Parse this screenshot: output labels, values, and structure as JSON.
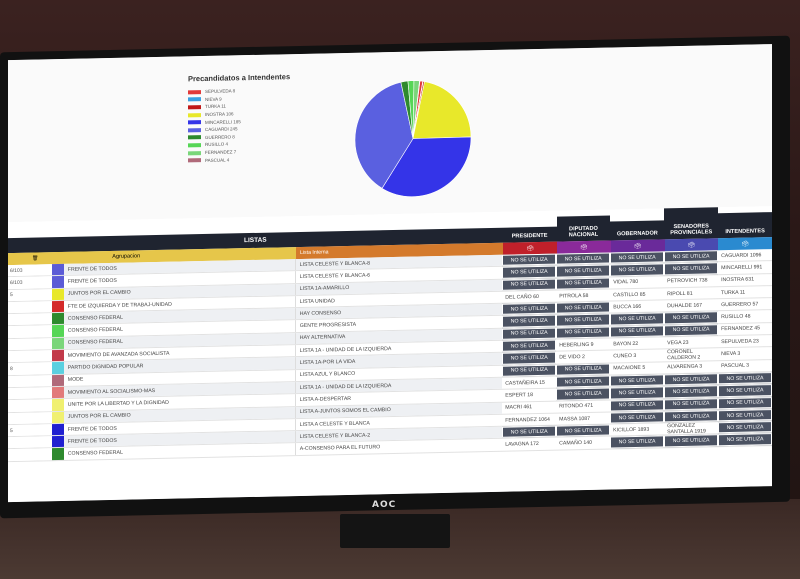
{
  "chart_data": {
    "type": "pie",
    "title": "Precandidatos a Intendentes",
    "series": [
      {
        "name": "SEPULVEDA",
        "value": 23,
        "color": "#e23a3a"
      },
      {
        "name": "NIEVA",
        "value": 3,
        "color": "#3aa0e2"
      },
      {
        "name": "TURKA",
        "value": 11,
        "color": "#c01818"
      },
      {
        "name": "INOSTRA",
        "value": 631,
        "color": "#e8e82a"
      },
      {
        "name": "MINCARELLI",
        "value": 991,
        "color": "#3434e8"
      },
      {
        "name": "CAGUARDI",
        "value": 1096,
        "color": "#5a60e0"
      },
      {
        "name": "GUERRERO",
        "value": 57,
        "color": "#2e8a2e"
      },
      {
        "name": "RUSILLO",
        "value": 48,
        "color": "#56d656"
      },
      {
        "name": "FERNANDEZ",
        "value": 45,
        "color": "#7ad67a"
      },
      {
        "name": "PASCUAL",
        "value": 3,
        "color": "#b06a7a"
      }
    ],
    "legend_position": "top-left"
  },
  "legend_labels": [
    "SEPULVEDA 8",
    "NIEVA 9",
    "TURKA 11",
    "INOSTRA 106",
    "MINCARELLI 185",
    "CAGUARDI 245",
    "GUERRERO 8",
    "RUSILLO 4",
    "FERNANDEZ 7",
    "PASCUAL 4"
  ],
  "header": {
    "listas": "LISTAS",
    "presidente": "PRESIDENTE",
    "diputado": "DIPUTADO NACIONAL",
    "gobernador": "GOBERNADOR",
    "senadores": "SENADORES PROVINCIALES",
    "intendentes": "INTENDENTES",
    "agrupacion": "Agrupacion",
    "lista_interna": "Lista Interna"
  },
  "rows": [
    {
      "num": "6/103",
      "color": "#5b5bd6",
      "agr": "FRENTE DE TODOS",
      "lista": "LISTA CELESTE Y BLANCA-8",
      "c": [
        "NO SE UTILIZA",
        "NO SE UTILIZA",
        "NO SE UTILIZA",
        "NO SE UTILIZA",
        "CAGUARDI  1096"
      ]
    },
    {
      "num": "6/103",
      "color": "#5b5bd6",
      "agr": "FRENTE DE TODOS",
      "lista": "LISTA CELESTE Y BLANCA-6",
      "c": [
        "NO SE UTILIZA",
        "NO SE UTILIZA",
        "NO SE UTILIZA",
        "NO SE UTILIZA",
        "MINCARELLI  991"
      ]
    },
    {
      "num": "5",
      "color": "#e8e82a",
      "agr": "JUNTOS POR EL CAMBIO",
      "lista": "LISTA 1A-AMARILLO",
      "c": [
        "NO SE UTILIZA",
        "NO SE UTILIZA",
        "VIDAL  780",
        "PETROVICH  738",
        "INOSTRA  631"
      ]
    },
    {
      "num": "",
      "color": "#d42a2a",
      "agr": "FTE DE IZQUIERDA Y DE TRABAJ-UNIDAD",
      "lista": "LISTA UNIDAD",
      "c": [
        "DEL CAÑO  60",
        "PITROLA  58",
        "CASTILLO  85",
        "RIPOLL  81",
        "TURKA  11"
      ]
    },
    {
      "num": "",
      "color": "#2e8a2e",
      "agr": "CONSENSO FEDERAL",
      "lista": "HAY CONSENSO",
      "c": [
        "NO SE UTILIZA",
        "NO SE UTILIZA",
        "BUCCA  166",
        "DUHALDE  167",
        "GUERRERO  57"
      ]
    },
    {
      "num": "",
      "color": "#56d656",
      "agr": "CONSENSO FEDERAL",
      "lista": "GENTE PROGRESISTA",
      "c": [
        "NO SE UTILIZA",
        "NO SE UTILIZA",
        "NO SE UTILIZA",
        "NO SE UTILIZA",
        "RUSILLO  48"
      ]
    },
    {
      "num": "",
      "color": "#7ad67a",
      "agr": "CONSENSO FEDERAL",
      "lista": "HAY ALTERNATIVA",
      "c": [
        "NO SE UTILIZA",
        "NO SE UTILIZA",
        "NO SE UTILIZA",
        "NO SE UTILIZA",
        "FERNANDEZ  45"
      ]
    },
    {
      "num": "",
      "color": "#c23a4a",
      "agr": "MOVIMIENTO DE AVANZADA SOCIALISTA",
      "lista": "LISTA 1A - UNIDAD DE LA IZQUIERDA",
      "c": [
        "NO SE UTILIZA",
        "HEBERLING  9",
        "BAYON  22",
        "VEGA  23",
        "SEPULVEDA  23"
      ]
    },
    {
      "num": "8",
      "color": "#5ad0e0",
      "agr": "PARTIDO DIGNIDAD POPULAR",
      "lista": "LISTA 1A-POR LA VIDA",
      "c": [
        "NO SE UTILIZA",
        "DE VIDO  2",
        "CUNEO  3",
        "CORONEL CALDERON  2",
        "NIEVA  3"
      ]
    },
    {
      "num": "",
      "color": "#b06a7a",
      "agr": "MODE",
      "lista": "LISTA AZUL Y BLANCO",
      "c": [
        "NO SE UTILIZA",
        "NO SE UTILIZA",
        "MACAIONE  5",
        "ALVARENGA  3",
        "PASCUAL  3"
      ]
    },
    {
      "num": "",
      "color": "#e27a7a",
      "agr": "MOVIMIENTO AL SOCIALISMO-MAS",
      "lista": "LISTA 1A - UNIDAD DE LA IZQUIERDA",
      "c": [
        "CASTAÑEIRA  15",
        "NO SE UTILIZA",
        "NO SE UTILIZA",
        "NO SE UTILIZA",
        "NO SE UTILIZA"
      ]
    },
    {
      "num": "",
      "color": "#f0f070",
      "agr": "UNITE POR LA LIBERTAD Y LA DIGNIDAD",
      "lista": "LISTA A-DESPERTAR",
      "c": [
        "ESPERT  18",
        "NO SE UTILIZA",
        "NO SE UTILIZA",
        "NO SE UTILIZA",
        "NO SE UTILIZA"
      ]
    },
    {
      "num": "",
      "color": "#f0f070",
      "agr": "JUNTOS POR EL CAMBIO",
      "lista": "LISTA A-JUNTOS SOMOS EL CAMBIO",
      "c": [
        "MACRI  461",
        "RITONDO  471",
        "NO SE UTILIZA",
        "NO SE UTILIZA",
        "NO SE UTILIZA"
      ]
    },
    {
      "num": "5",
      "color": "#2020d0",
      "agr": "FRENTE DE TODOS",
      "lista": "LISTA A CELESTE Y BLANCA",
      "c": [
        "FERNANDEZ  1064",
        "MASSA  1087",
        "NO SE UTILIZA",
        "NO SE UTILIZA",
        "NO SE UTILIZA"
      ]
    },
    {
      "num": "",
      "color": "#2020d0",
      "agr": "FRENTE DE TODOS",
      "lista": "LISTA CELESTE Y BLANCA-2",
      "c": [
        "NO SE UTILIZA",
        "NO SE UTILIZA",
        "KICILLOF  1893",
        "GONZALEZ SANTALLA  1919",
        "NO SE UTILIZA"
      ]
    },
    {
      "num": "",
      "color": "#2e8a2e",
      "agr": "CONSENSO FEDERAL",
      "lista": "A-CONSENSO PARA EL FUTURO",
      "c": [
        "LAVAGNA  172",
        "CAMAÑO  140",
        "NO SE UTILIZA",
        "NO SE UTILIZA",
        "NO SE UTILIZA"
      ]
    }
  ],
  "tv_brand": "AOC"
}
